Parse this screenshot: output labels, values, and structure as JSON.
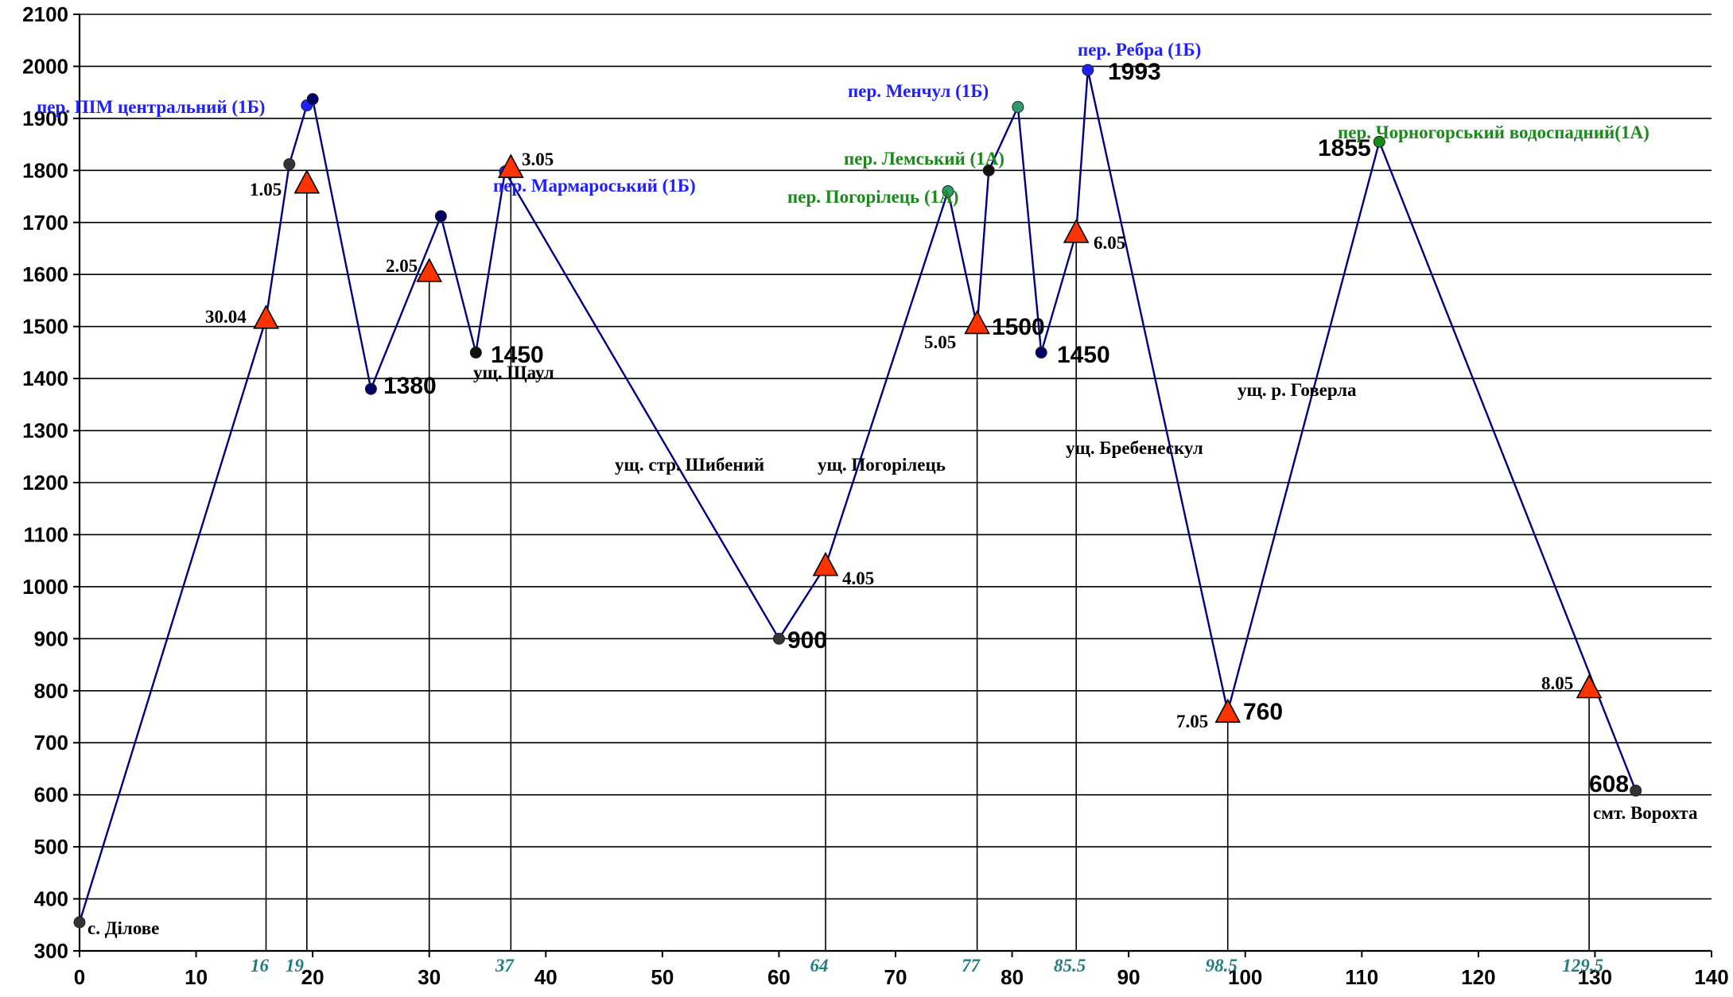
{
  "chart_data": {
    "type": "line",
    "xlim": [
      0,
      140
    ],
    "ylim": [
      300,
      2100
    ],
    "x_ticks": [
      0,
      10,
      20,
      30,
      40,
      50,
      60,
      70,
      80,
      90,
      100,
      110,
      120,
      130,
      140
    ],
    "y_ticks": [
      300,
      400,
      500,
      600,
      700,
      800,
      900,
      1000,
      1100,
      1200,
      1300,
      1400,
      1500,
      1600,
      1700,
      1800,
      1900,
      2000,
      2100
    ],
    "grid": "horizontal",
    "line_color": "#000080",
    "series": [
      {
        "points": [
          {
            "x": 0,
            "y": 355,
            "color": "#333333"
          },
          {
            "x": 16,
            "y": 1515,
            "color": "#ff3300"
          },
          {
            "x": 18,
            "y": 1812,
            "color": "#333333"
          },
          {
            "x": 19.5,
            "y": 1925,
            "color": "#1f1fff"
          },
          {
            "x": 20,
            "y": 1937,
            "color": "#000066"
          },
          {
            "x": 25,
            "y": 1380,
            "color": "#000066"
          },
          {
            "x": 31,
            "y": 1712,
            "color": "#000066"
          },
          {
            "x": 34,
            "y": 1450,
            "color": "#111111"
          },
          {
            "x": 36.5,
            "y": 1798,
            "color": "#1f1fff"
          },
          {
            "x": 60,
            "y": 900,
            "color": "#333333"
          },
          {
            "x": 64,
            "y": 1040,
            "color": "#ff3300"
          },
          {
            "x": 74.5,
            "y": 1760,
            "color": "#2e9c6a"
          },
          {
            "x": 77,
            "y": 1500,
            "color": "#ff3300"
          },
          {
            "x": 78,
            "y": 1800,
            "color": "#111111"
          },
          {
            "x": 80.5,
            "y": 1922,
            "color": "#2e9c6a"
          },
          {
            "x": 82.5,
            "y": 1450,
            "color": "#000066"
          },
          {
            "x": 85.5,
            "y": 1680,
            "color": "#ff3300"
          },
          {
            "x": 86.5,
            "y": 1993,
            "color": "#1f1fff"
          },
          {
            "x": 98.5,
            "y": 760,
            "color": "#1f1fff"
          },
          {
            "x": 111.5,
            "y": 1855,
            "color": "#1a8a1a"
          },
          {
            "x": 133.5,
            "y": 608,
            "color": "#333333"
          }
        ]
      }
    ],
    "camp_markers": [
      {
        "x": 16,
        "y": 1515,
        "label": "30.04"
      },
      {
        "x": 19.5,
        "y": 1775,
        "label": "1.05"
      },
      {
        "x": 30,
        "y": 1605,
        "label": "2.05"
      },
      {
        "x": 37,
        "y": 1805,
        "label": "3.05"
      },
      {
        "x": 64,
        "y": 1040,
        "label": "4.05"
      },
      {
        "x": 77,
        "y": 1505,
        "label": "5.05"
      },
      {
        "x": 85.5,
        "y": 1680,
        "label": "6.05"
      },
      {
        "x": 98.5,
        "y": 758,
        "label": "7.05"
      },
      {
        "x": 129.5,
        "y": 805,
        "label": "8.05"
      }
    ],
    "x_marks": [
      "16",
      "19",
      "37",
      "64",
      "77",
      "85.5",
      "98.5",
      "129.5"
    ],
    "elevation_labels": [
      "1380",
      "1450",
      "900",
      "1500",
      "1450",
      "1993",
      "760",
      "1855",
      "608"
    ],
    "pass_labels": [
      "пер. ПІМ центральний (1Б)",
      "пер. Мармароський (1Б)",
      "пер.  Менчул (1Б)",
      "пер. Лемський  (1А)",
      "пер. Погорілець (1А)",
      "пер.  Ребра (1Б)",
      "пер.  Чорногорський водоспадний(1А)"
    ],
    "place_labels": [
      "с. Ділове",
      "ущ. Щаул",
      "ущ. стр. Шибений",
      "ущ. Погорілець",
      "ущ. Бребенескул",
      "ущ. р. Говерла",
      "смт. Ворохта"
    ]
  }
}
